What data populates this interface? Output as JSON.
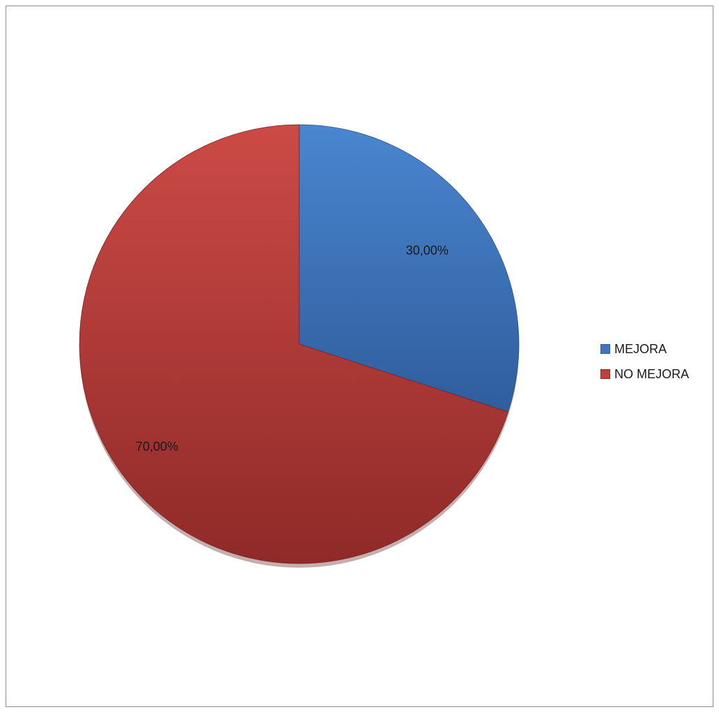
{
  "chart_data": {
    "type": "pie",
    "title": "",
    "categories": [
      "MEJORA",
      "NO MEJORA"
    ],
    "values": [
      30,
      70
    ],
    "data_labels": [
      "30,00%",
      "70,00%"
    ],
    "colors": [
      "#3f75c1",
      "#c0403d"
    ],
    "legend": {
      "placement": "right",
      "entries": [
        "MEJORA",
        "NO MEJORA"
      ]
    }
  }
}
